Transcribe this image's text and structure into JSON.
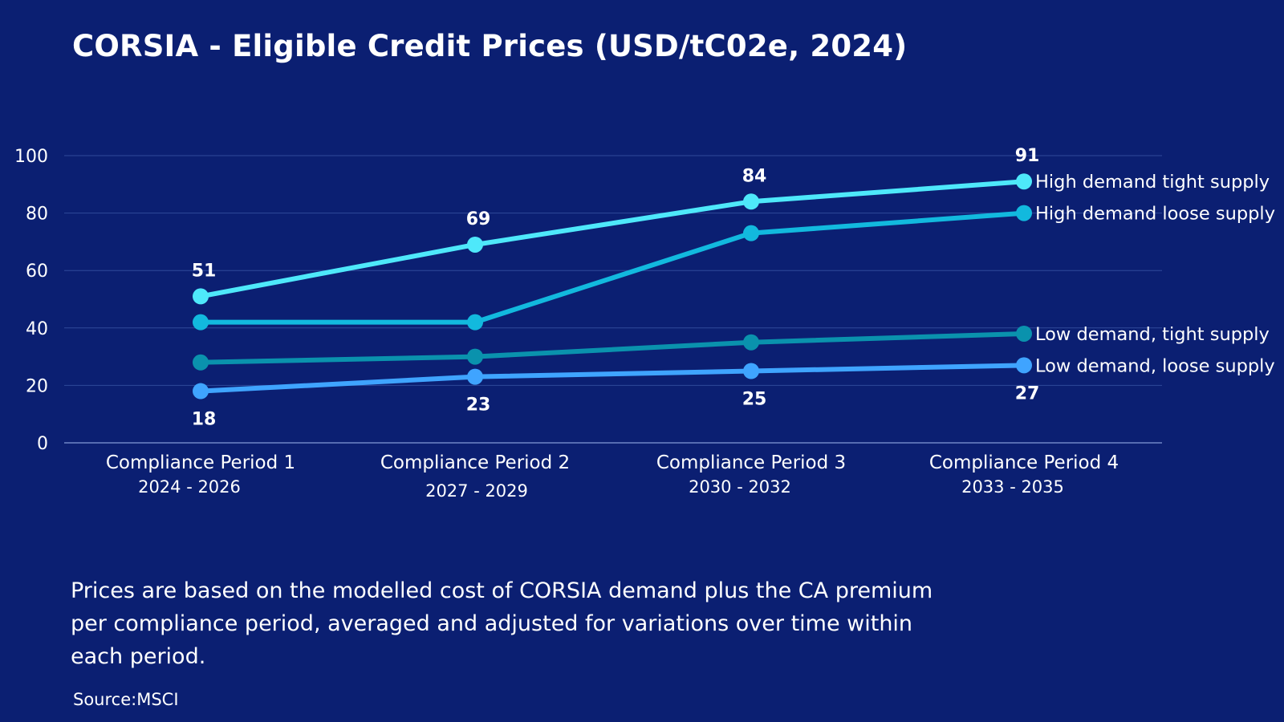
{
  "title": "CORSIA - Eligible Credit Prices (USD/tC02e, 2024)",
  "note": "Prices are based on the modelled cost of CORSIA demand plus the CA premium per compliance period, averaged and adjusted for variations over time within each period.",
  "source": "Source:MSCI",
  "chart_data": {
    "type": "line",
    "title": "CORSIA - Eligible Credit Prices (USD/tC02e, 2024)",
    "xlabel": "",
    "ylabel": "",
    "ylim": [
      0,
      100
    ],
    "yticks": [
      0,
      20,
      40,
      60,
      80,
      100
    ],
    "grid": true,
    "legend": "right-end labels",
    "categories": [
      {
        "label": "Compliance Period 1",
        "sublabel": "2024 - 2026"
      },
      {
        "label": "Compliance Period 2",
        "sublabel": "2027 - 2029"
      },
      {
        "label": "Compliance Period 3",
        "sublabel": "2030 - 2032"
      },
      {
        "label": "Compliance Period 4",
        "sublabel": "2033 - 2035"
      }
    ],
    "series": [
      {
        "name": "High demand tight supply",
        "values": [
          51,
          69,
          84,
          91
        ],
        "color": "#4ee8fa",
        "show_labels": true,
        "label_position": "above"
      },
      {
        "name": "High demand loose supply",
        "values": [
          42,
          42,
          73,
          80
        ],
        "color": "#12b9de",
        "show_labels": false
      },
      {
        "name": "Low demand, tight supply",
        "values": [
          28,
          30,
          35,
          38
        ],
        "color": "#0a92ad",
        "show_labels": false
      },
      {
        "name": "Low demand, loose supply",
        "values": [
          18,
          23,
          25,
          27
        ],
        "color": "#3fa4ff",
        "show_labels": true,
        "label_position": "below"
      }
    ],
    "value_labels": [
      {
        "series": 0,
        "index": 0,
        "text": "51"
      },
      {
        "series": 0,
        "index": 1,
        "text": "69"
      },
      {
        "series": 0,
        "index": 2,
        "text": "84"
      },
      {
        "series": 0,
        "index": 3,
        "text": "91"
      },
      {
        "series": 3,
        "index": 0,
        "text": "18"
      },
      {
        "series": 3,
        "index": 1,
        "text": "23"
      },
      {
        "series": 3,
        "index": 2,
        "text": "25"
      },
      {
        "series": 3,
        "index": 3,
        "text": "27"
      }
    ]
  }
}
